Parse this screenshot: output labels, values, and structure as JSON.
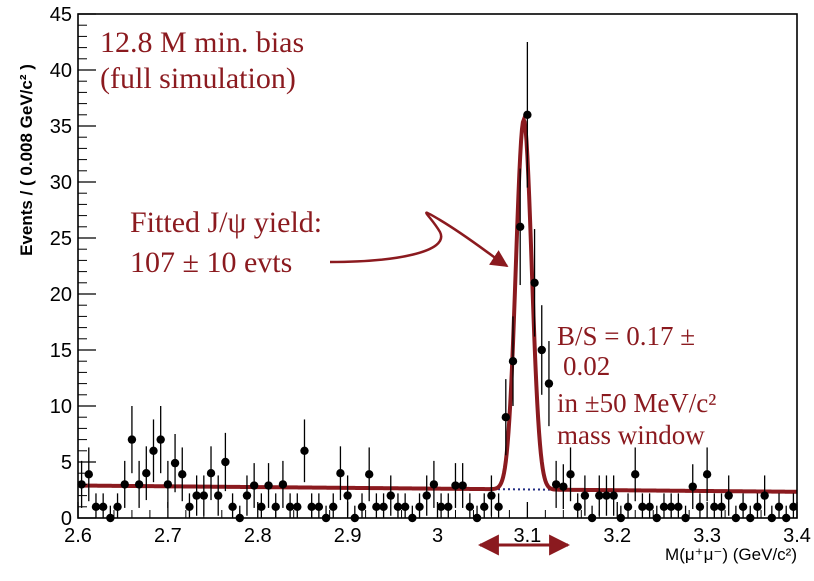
{
  "chart_data": {
    "type": "scatter",
    "title": "",
    "xlabel": "M(μ⁺μ⁻) (GeV/c²)",
    "ylabel": "Events / ( 0.008 GeV/c² )",
    "xlim": [
      2.6,
      3.4
    ],
    "ylim": [
      0,
      45
    ],
    "xticks": [
      "2.6",
      "2.7",
      "2.8",
      "2.9",
      "3",
      "3.1",
      "3.2",
      "3.3",
      "3.4"
    ],
    "yticks": [
      "0",
      "5",
      "10",
      "15",
      "20",
      "25",
      "30",
      "35",
      "40",
      "45"
    ],
    "grid": false,
    "series": [
      {
        "type": "points_with_errors",
        "points": [
          [
            2.604,
            3.0,
            2.1
          ],
          [
            2.612,
            3.9,
            2.4
          ],
          [
            2.62,
            1.0,
            1.2
          ],
          [
            2.628,
            1.0,
            1.2
          ],
          [
            2.636,
            0.0,
            1.1
          ],
          [
            2.644,
            1.0,
            1.2
          ],
          [
            2.652,
            3.0,
            2.1
          ],
          [
            2.66,
            7.0,
            3.0
          ],
          [
            2.668,
            3.0,
            2.1
          ],
          [
            2.676,
            4.0,
            2.4
          ],
          [
            2.684,
            6.0,
            2.8
          ],
          [
            2.692,
            7.0,
            3.0
          ],
          [
            2.7,
            3.0,
            2.1
          ],
          [
            2.708,
            4.9,
            2.6
          ],
          [
            2.716,
            3.9,
            2.4
          ],
          [
            2.724,
            1.0,
            1.2
          ],
          [
            2.732,
            2.0,
            1.8
          ],
          [
            2.74,
            2.0,
            1.8
          ],
          [
            2.748,
            4.0,
            2.4
          ],
          [
            2.756,
            2.0,
            1.8
          ],
          [
            2.764,
            5.0,
            2.6
          ],
          [
            2.772,
            1.0,
            1.2
          ],
          [
            2.78,
            0.0,
            1.1
          ],
          [
            2.788,
            2.0,
            1.8
          ],
          [
            2.796,
            2.9,
            2.0
          ],
          [
            2.804,
            1.0,
            1.2
          ],
          [
            2.812,
            2.9,
            2.0
          ],
          [
            2.82,
            1.0,
            1.2
          ],
          [
            2.828,
            3.0,
            2.1
          ],
          [
            2.836,
            1.0,
            1.2
          ],
          [
            2.844,
            1.0,
            1.2
          ],
          [
            2.852,
            6.0,
            2.8
          ],
          [
            2.86,
            1.0,
            1.2
          ],
          [
            2.868,
            1.0,
            1.2
          ],
          [
            2.876,
            0.0,
            1.1
          ],
          [
            2.884,
            1.0,
            1.2
          ],
          [
            2.892,
            4.0,
            2.4
          ],
          [
            2.9,
            2.0,
            1.8
          ],
          [
            2.908,
            0.0,
            1.1
          ],
          [
            2.916,
            1.0,
            1.2
          ],
          [
            2.924,
            3.9,
            2.4
          ],
          [
            2.932,
            1.0,
            1.2
          ],
          [
            2.94,
            1.0,
            1.2
          ],
          [
            2.948,
            2.0,
            1.8
          ],
          [
            2.956,
            1.0,
            1.2
          ],
          [
            2.964,
            1.0,
            1.2
          ],
          [
            2.972,
            0.0,
            1.1
          ],
          [
            2.98,
            1.0,
            1.2
          ],
          [
            2.988,
            2.0,
            1.8
          ],
          [
            2.996,
            3.0,
            2.1
          ],
          [
            3.004,
            1.0,
            1.2
          ],
          [
            3.012,
            1.0,
            1.2
          ],
          [
            3.02,
            2.9,
            2.0
          ],
          [
            3.028,
            2.9,
            2.0
          ],
          [
            3.036,
            1.0,
            1.2
          ],
          [
            3.044,
            0.0,
            1.1
          ],
          [
            3.052,
            1.0,
            1.2
          ],
          [
            3.06,
            2.0,
            1.8
          ],
          [
            3.068,
            1.0,
            1.2
          ],
          [
            3.076,
            9.0,
            3.4
          ],
          [
            3.084,
            14.0,
            4.0
          ],
          [
            3.092,
            26.0,
            5.2
          ],
          [
            3.1,
            36.0,
            6.5
          ],
          [
            3.108,
            21.0,
            4.8
          ],
          [
            3.116,
            15.0,
            4.0
          ],
          [
            3.124,
            12.0,
            3.8
          ],
          [
            3.132,
            3.0,
            2.1
          ],
          [
            3.14,
            2.8,
            2.0
          ],
          [
            3.148,
            3.9,
            2.4
          ],
          [
            3.156,
            1.0,
            1.2
          ],
          [
            3.164,
            2.0,
            1.8
          ],
          [
            3.172,
            0.0,
            1.1
          ],
          [
            3.18,
            2.0,
            1.8
          ],
          [
            3.188,
            2.0,
            1.8
          ],
          [
            3.196,
            2.0,
            1.8
          ],
          [
            3.204,
            0.0,
            1.1
          ],
          [
            3.212,
            1.0,
            1.2
          ],
          [
            3.22,
            3.9,
            2.4
          ],
          [
            3.228,
            1.0,
            1.2
          ],
          [
            3.236,
            1.0,
            1.2
          ],
          [
            3.244,
            0.0,
            1.1
          ],
          [
            3.252,
            1.0,
            1.2
          ],
          [
            3.26,
            1.0,
            1.2
          ],
          [
            3.268,
            1.0,
            1.2
          ],
          [
            3.276,
            0.0,
            1.1
          ],
          [
            3.284,
            2.8,
            2.0
          ],
          [
            3.292,
            1.0,
            1.2
          ],
          [
            3.3,
            3.9,
            2.4
          ],
          [
            3.308,
            1.0,
            1.2
          ],
          [
            3.316,
            1.0,
            1.2
          ],
          [
            3.324,
            2.0,
            1.8
          ],
          [
            3.332,
            0.0,
            1.1
          ],
          [
            3.34,
            1.0,
            1.2
          ],
          [
            3.348,
            0.0,
            1.1
          ],
          [
            3.356,
            1.0,
            1.2
          ],
          [
            3.364,
            2.0,
            1.8
          ],
          [
            3.372,
            0.0,
            1.1
          ],
          [
            3.38,
            1.0,
            1.2
          ],
          [
            3.388,
            0.0,
            1.1
          ],
          [
            3.396,
            1.0,
            1.2
          ]
        ]
      },
      {
        "type": "fit_curve",
        "background": {
          "a": 2.9,
          "b": 0.7
        },
        "signal": {
          "mean": 3.096,
          "sigma": 0.0088,
          "amplitude": 33.0
        }
      }
    ],
    "annotations": {
      "sample_line1": "12.8 M min. bias",
      "sample_line2": "(full simulation)",
      "yield_line1": "Fitted J/ψ yield:",
      "yield_line2": "107 ± 10 evts",
      "bs_line1": "B/S = 0.17 ±",
      "bs_line2": "0.02",
      "bs_line3": "in ±50 MeV/c²",
      "bs_line4": "mass window"
    },
    "colors": {
      "fit": "#8b1a1f",
      "background": "#1f2a80",
      "annotation": "#8b1a1f",
      "points": "#000000"
    }
  }
}
